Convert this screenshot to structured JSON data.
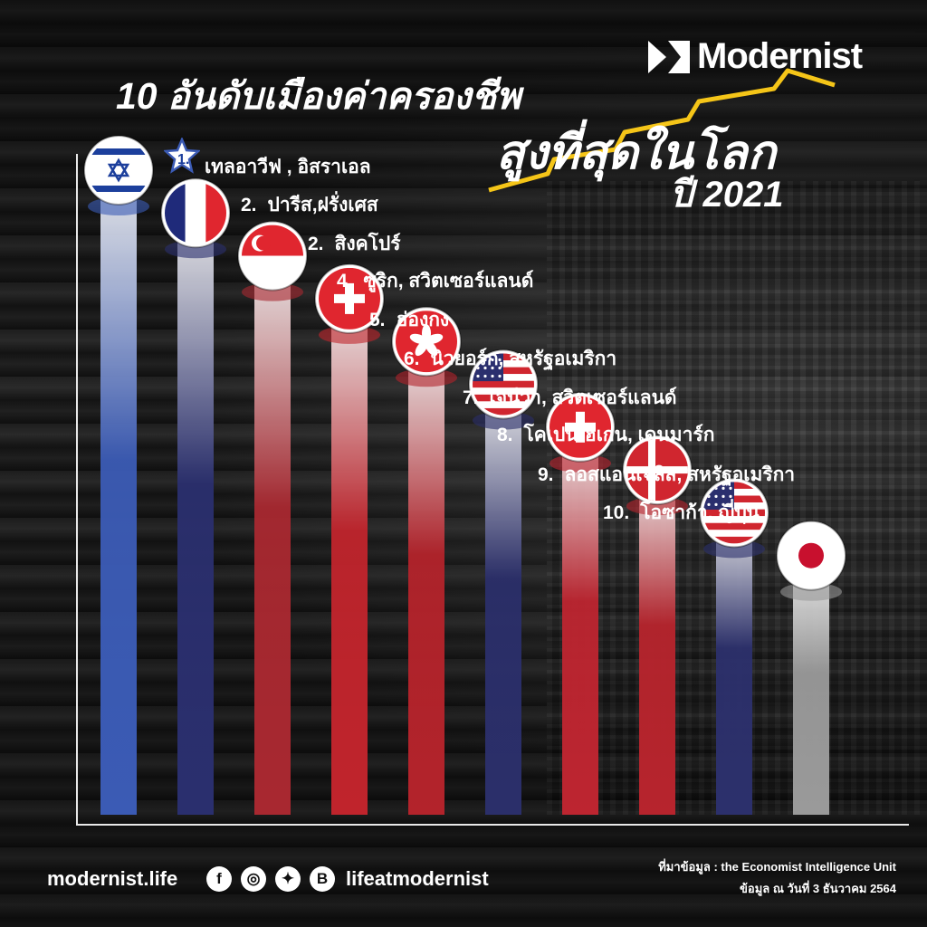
{
  "brand": {
    "name": "Modernist"
  },
  "title": {
    "line1": "10 อันดับเมืองค่าครองชีพ",
    "line2": "สูงที่สุดในโลก",
    "line3": "ปี 2021",
    "accent_color": "#f5c518"
  },
  "chart_data": {
    "type": "bar",
    "rows": [
      {
        "rank": "1.",
        "city": "เทลอาวีฟ , อิสราเอล",
        "flag": "israel-flag-icon",
        "color": "#3b5bb5"
      },
      {
        "rank": "2.",
        "city": "ปารีส,ฝรั่งเศส",
        "flag": "france-flag-icon",
        "color": "#2a2f6e"
      },
      {
        "rank": "2.",
        "city": "สิงคโปร์",
        "flag": "singapore-flag-icon",
        "color": "#a82830"
      },
      {
        "rank": "4.",
        "city": "ซูริก, สวิตเซอร์แลนด์",
        "flag": "switzerland-flag-icon",
        "color": "#c0242c"
      },
      {
        "rank": "5.",
        "city": "ฮ่องกง",
        "flag": "hong-kong-flag-icon",
        "color": "#b3232b"
      },
      {
        "rank": "6.",
        "city": "นิวยอร์ก, สหรัฐอเมริกา",
        "flag": "usa-flag-icon",
        "color": "#2b2f6a"
      },
      {
        "rank": "7.",
        "city": "เจนีวา, สวิตเซอร์แลนด์",
        "flag": "switzerland-flag-icon",
        "color": "#bd2530"
      },
      {
        "rank": "8.",
        "city": "โคเปนเฮเกน, เดนมาร์ก",
        "flag": "denmark-flag-icon",
        "color": "#b7242d"
      },
      {
        "rank": "9.",
        "city": "ลอสแอนเจลิส, สหรัฐอเมริกา",
        "flag": "usa-flag-icon",
        "color": "#2c306c"
      },
      {
        "rank": "10.",
        "city": "โอซาก้า, ญี่ปุ่น",
        "flag": "japan-flag-icon",
        "color": "#9a9a9a"
      }
    ]
  },
  "footer": {
    "site": "modernist.life",
    "handle": "lifeatmodernist",
    "social": [
      {
        "icon": "facebook-icon",
        "glyph": "f"
      },
      {
        "icon": "instagram-icon",
        "glyph": "◎"
      },
      {
        "icon": "twitter-icon",
        "glyph": "✦"
      },
      {
        "icon": "blockdit-icon",
        "glyph": "B"
      }
    ],
    "source_line1": "ที่มาข้อมูล : the Economist Intelligence Unit",
    "source_line2": "ข้อมูล ณ วันที่ 3 ธันวาคม 2564"
  }
}
